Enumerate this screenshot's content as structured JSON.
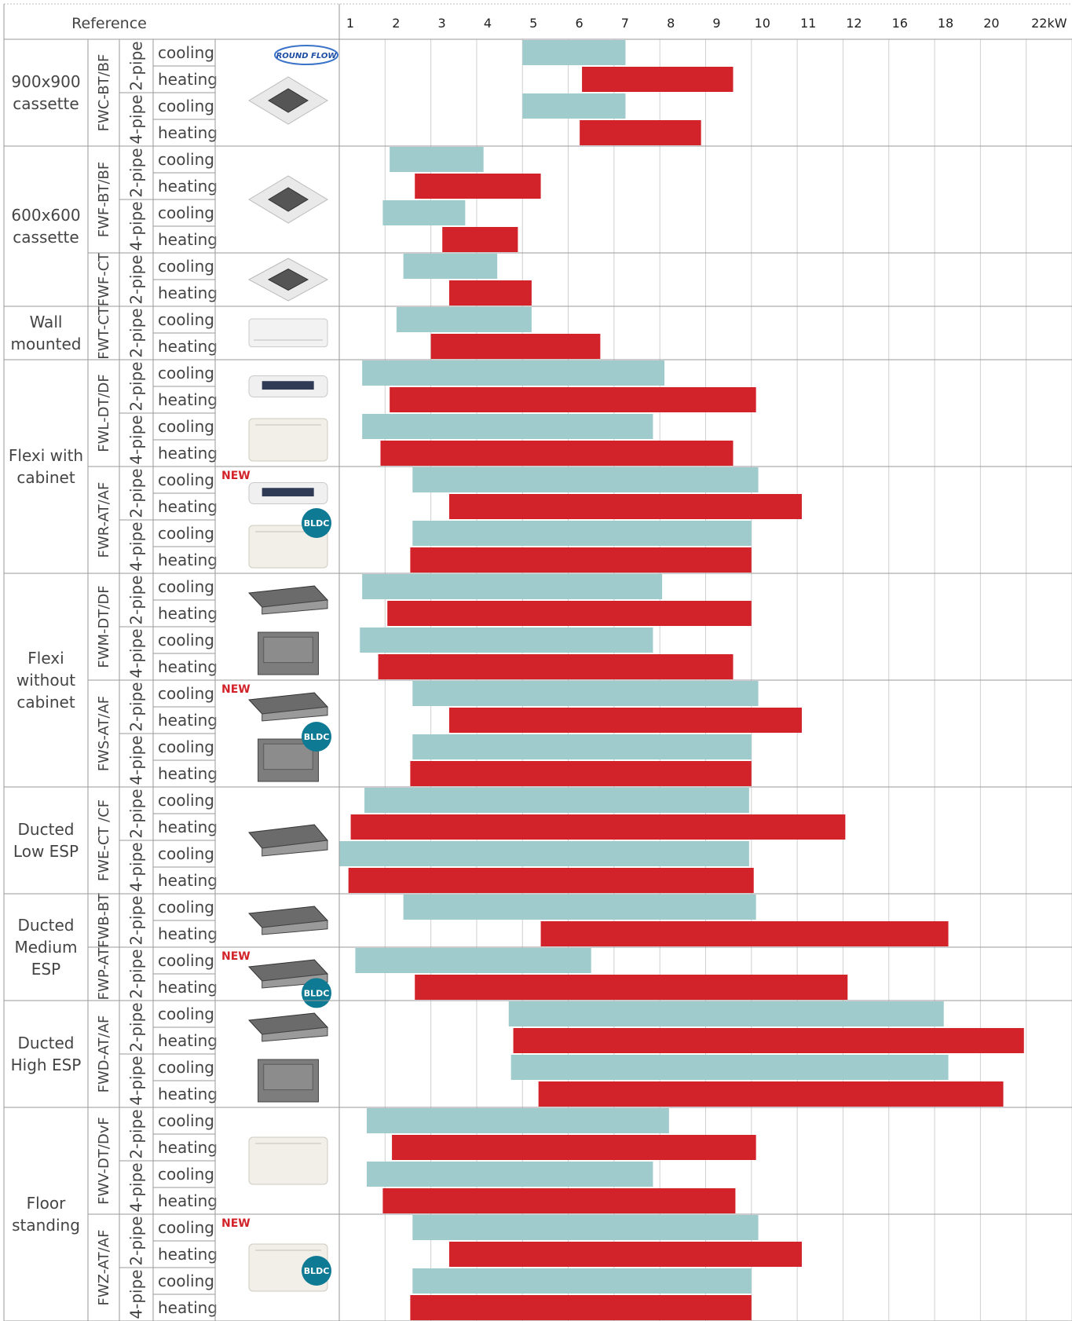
{
  "header": {
    "reference": "Reference"
  },
  "colors": {
    "cooling": "#a0cbcc",
    "heating": "#d2232a",
    "grid": "#cfcfcf",
    "badge": "#0e7a93",
    "new": "#d2232a",
    "text": "#444444"
  },
  "badges": {
    "new": "NEW",
    "bldc": "BLDC",
    "roundflow": "ROUND FLOW"
  },
  "chart_data": {
    "type": "bar",
    "orientation": "horizontal-range",
    "x_ticks": [
      "1",
      "2",
      "3",
      "4",
      "5",
      "6",
      "7",
      "8",
      "9",
      "10",
      "11",
      "12",
      "16",
      "18",
      "20",
      "22kW"
    ],
    "categories_groups": [
      {
        "name": "900x900\ncassette",
        "models": [
          {
            "name": "FWC-BT/BF",
            "pipes": [
              {
                "name": "2-pipe",
                "rows": [
                  {
                    "mode": "cooling",
                    "range": [
                      5.0,
                      7.25
                    ]
                  },
                  {
                    "mode": "heating",
                    "range": [
                      6.3,
                      9.6
                    ]
                  }
                ]
              },
              {
                "name": "4-pipe",
                "rows": [
                  {
                    "mode": "cooling",
                    "range": [
                      5.0,
                      7.25
                    ]
                  },
                  {
                    "mode": "heating",
                    "range": [
                      6.25,
                      8.9
                    ]
                  }
                ]
              }
            ],
            "icons": [
              "cassette-image"
            ],
            "roundflow": true
          }
        ]
      },
      {
        "name": "600x600\ncassette",
        "models": [
          {
            "name": "FWF-BT/BF",
            "pipes": [
              {
                "name": "2-pipe",
                "rows": [
                  {
                    "mode": "cooling",
                    "range": [
                      2.1,
                      4.15
                    ]
                  },
                  {
                    "mode": "heating",
                    "range": [
                      2.65,
                      5.4
                    ]
                  }
                ]
              },
              {
                "name": "4-pipe",
                "rows": [
                  {
                    "mode": "cooling",
                    "range": [
                      1.95,
                      3.75
                    ]
                  },
                  {
                    "mode": "heating",
                    "range": [
                      3.25,
                      4.9
                    ]
                  }
                ]
              }
            ],
            "icons": [
              "cassette-image"
            ]
          },
          {
            "name": "FWF-CT",
            "pipes": [
              {
                "name": "2-pipe",
                "rows": [
                  {
                    "mode": "cooling",
                    "range": [
                      2.4,
                      4.45
                    ]
                  },
                  {
                    "mode": "heating",
                    "range": [
                      3.4,
                      5.2
                    ]
                  }
                ]
              }
            ],
            "icons": [
              "cassette-image"
            ]
          }
        ]
      },
      {
        "name": "Wall\nmounted",
        "models": [
          {
            "name": "FWT-CT",
            "pipes": [
              {
                "name": "2-pipe",
                "rows": [
                  {
                    "mode": "cooling",
                    "range": [
                      2.25,
                      5.2
                    ]
                  },
                  {
                    "mode": "heating",
                    "range": [
                      3.0,
                      6.7
                    ]
                  }
                ]
              }
            ],
            "icons": [
              "wall-unit-image"
            ]
          }
        ]
      },
      {
        "name": "Flexi with\ncabinet",
        "models": [
          {
            "name": "FWL-DT/DF",
            "pipes": [
              {
                "name": "2-pipe",
                "rows": [
                  {
                    "mode": "cooling",
                    "range": [
                      1.5,
                      8.1
                    ]
                  },
                  {
                    "mode": "heating",
                    "range": [
                      2.1,
                      10.1
                    ]
                  }
                ]
              },
              {
                "name": "4-pipe",
                "rows": [
                  {
                    "mode": "cooling",
                    "range": [
                      1.5,
                      7.85
                    ]
                  },
                  {
                    "mode": "heating",
                    "range": [
                      1.9,
                      9.6
                    ]
                  }
                ]
              }
            ],
            "icons": [
              "ceiling-unit-image",
              "floor-unit-image"
            ]
          },
          {
            "name": "FWR-AT/AF",
            "pipes": [
              {
                "name": "2-pipe",
                "rows": [
                  {
                    "mode": "cooling",
                    "range": [
                      2.6,
                      10.15
                    ]
                  },
                  {
                    "mode": "heating",
                    "range": [
                      3.4,
                      11.1
                    ]
                  }
                ]
              },
              {
                "name": "4-pipe",
                "rows": [
                  {
                    "mode": "cooling",
                    "range": [
                      2.6,
                      10.0
                    ]
                  },
                  {
                    "mode": "heating",
                    "range": [
                      2.55,
                      10.0
                    ]
                  }
                ]
              }
            ],
            "icons": [
              "ceiling-unit-image",
              "floor-unit-image"
            ],
            "new": true,
            "bldc": true
          }
        ]
      },
      {
        "name": "Flexi\nwithout\ncabinet",
        "models": [
          {
            "name": "FWM-DT/DF",
            "pipes": [
              {
                "name": "2-pipe",
                "rows": [
                  {
                    "mode": "cooling",
                    "range": [
                      1.5,
                      8.05
                    ]
                  },
                  {
                    "mode": "heating",
                    "range": [
                      2.05,
                      10.0
                    ]
                  }
                ]
              },
              {
                "name": "4-pipe",
                "rows": [
                  {
                    "mode": "cooling",
                    "range": [
                      1.45,
                      7.85
                    ]
                  },
                  {
                    "mode": "heating",
                    "range": [
                      1.85,
                      9.6
                    ]
                  }
                ]
              }
            ],
            "icons": [
              "ducted-unit-image",
              "box-unit-image"
            ]
          },
          {
            "name": "FWS-AT/AF",
            "pipes": [
              {
                "name": "2-pipe",
                "rows": [
                  {
                    "mode": "cooling",
                    "range": [
                      2.6,
                      10.15
                    ]
                  },
                  {
                    "mode": "heating",
                    "range": [
                      3.4,
                      11.1
                    ]
                  }
                ]
              },
              {
                "name": "4-pipe",
                "rows": [
                  {
                    "mode": "cooling",
                    "range": [
                      2.6,
                      10.0
                    ]
                  },
                  {
                    "mode": "heating",
                    "range": [
                      2.55,
                      10.0
                    ]
                  }
                ]
              }
            ],
            "icons": [
              "ducted-unit-image",
              "box-unit-image"
            ],
            "new": true,
            "bldc": true
          }
        ]
      },
      {
        "name": "Ducted\nLow ESP",
        "models": [
          {
            "name": "FWE-CT /CF",
            "pipes": [
              {
                "name": "2-pipe",
                "rows": [
                  {
                    "mode": "cooling",
                    "range": [
                      1.55,
                      9.95
                    ]
                  },
                  {
                    "mode": "heating",
                    "range": [
                      1.25,
                      12.2
                    ]
                  }
                ]
              },
              {
                "name": "4-pipe",
                "rows": [
                  {
                    "mode": "cooling",
                    "range": [
                      1.0,
                      9.95
                    ]
                  },
                  {
                    "mode": "heating",
                    "range": [
                      1.2,
                      10.05
                    ]
                  }
                ]
              }
            ],
            "icons": [
              "ducted-unit-image"
            ]
          }
        ]
      },
      {
        "name": "Ducted\nMedium\nESP",
        "models": [
          {
            "name": "FWB-BT",
            "pipes": [
              {
                "name": "2-pipe",
                "rows": [
                  {
                    "mode": "cooling",
                    "range": [
                      2.4,
                      10.1
                    ]
                  },
                  {
                    "mode": "heating",
                    "range": [
                      5.4,
                      18.6
                    ]
                  }
                ]
              }
            ],
            "icons": [
              "ducted-unit-image"
            ]
          },
          {
            "name": "FWP-AT",
            "pipes": [
              {
                "name": "2-pipe",
                "rows": [
                  {
                    "mode": "cooling",
                    "range": [
                      1.35,
                      6.5
                    ]
                  },
                  {
                    "mode": "heating",
                    "range": [
                      2.65,
                      12.4
                    ]
                  }
                ]
              }
            ],
            "icons": [
              "ducted-unit-image"
            ],
            "new": true,
            "bldc": true
          }
        ]
      },
      {
        "name": "Ducted\nHigh ESP",
        "models": [
          {
            "name": "FWD-AT/AF",
            "pipes": [
              {
                "name": "2-pipe",
                "rows": [
                  {
                    "mode": "cooling",
                    "range": [
                      4.7,
                      18.4
                    ]
                  },
                  {
                    "mode": "heating",
                    "range": [
                      4.8,
                      21.9
                    ]
                  }
                ]
              },
              {
                "name": "4-pipe",
                "rows": [
                  {
                    "mode": "cooling",
                    "range": [
                      4.75,
                      18.6
                    ]
                  },
                  {
                    "mode": "heating",
                    "range": [
                      5.35,
                      21.0
                    ]
                  }
                ]
              }
            ],
            "icons": [
              "ducted-unit-image",
              "box-unit-image"
            ]
          }
        ]
      },
      {
        "name": "Floor\nstanding",
        "models": [
          {
            "name": "FWV-DT/DvF",
            "pipes": [
              {
                "name": "2-pipe",
                "rows": [
                  {
                    "mode": "cooling",
                    "range": [
                      1.6,
                      8.2
                    ]
                  },
                  {
                    "mode": "heating",
                    "range": [
                      2.15,
                      10.1
                    ]
                  }
                ]
              },
              {
                "name": "4-pipe",
                "rows": [
                  {
                    "mode": "cooling",
                    "range": [
                      1.6,
                      7.85
                    ]
                  },
                  {
                    "mode": "heating",
                    "range": [
                      1.95,
                      9.65
                    ]
                  }
                ]
              }
            ],
            "icons": [
              "floor-cabinet-image"
            ]
          },
          {
            "name": "FWZ-AT/AF",
            "pipes": [
              {
                "name": "2-pipe",
                "rows": [
                  {
                    "mode": "cooling",
                    "range": [
                      2.6,
                      10.15
                    ]
                  },
                  {
                    "mode": "heating",
                    "range": [
                      3.4,
                      11.1
                    ]
                  }
                ]
              },
              {
                "name": "4-pipe",
                "rows": [
                  {
                    "mode": "cooling",
                    "range": [
                      2.6,
                      10.0
                    ]
                  },
                  {
                    "mode": "heating",
                    "range": [
                      2.55,
                      10.0
                    ]
                  }
                ]
              }
            ],
            "icons": [
              "floor-cabinet-image"
            ],
            "new": true,
            "bldc": true
          }
        ]
      }
    ]
  }
}
